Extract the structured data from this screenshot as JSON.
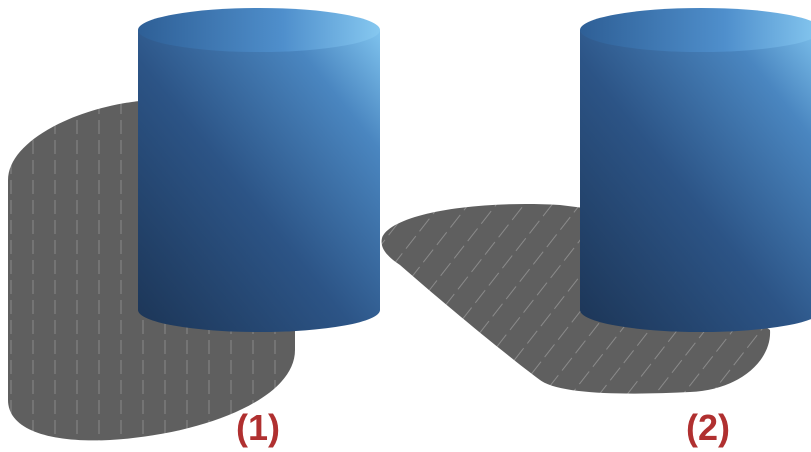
{
  "panels": [
    {
      "label": "(1)",
      "shadow": "vertical-shadow-stripes"
    },
    {
      "label": "(2)",
      "shadow": "diagonal-shadow-stripes"
    }
  ],
  "colors": {
    "label": "#b03030",
    "shadow": "#5f5f5f",
    "shadow_stripes": "#8a8a8a",
    "cylinder_light": "#7fc3ee",
    "cylinder_mid": "#3a6fa6",
    "cylinder_dark": "#1c3556",
    "cylinder_top": "#4f8fcc"
  }
}
